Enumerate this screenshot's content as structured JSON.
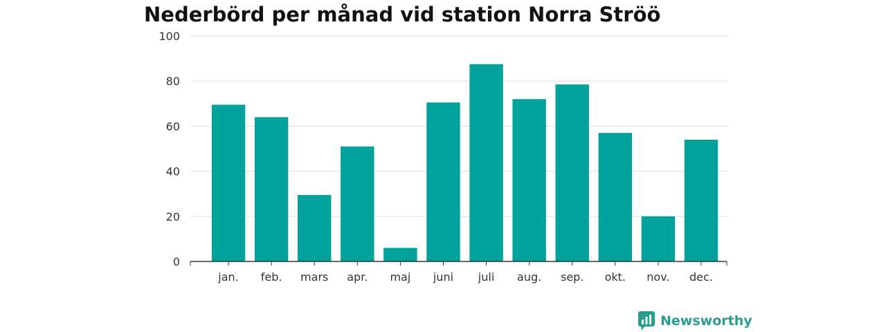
{
  "chart_data": {
    "type": "bar",
    "title": "Nederbörd per månad vid station Norra Ströö",
    "categories": [
      "jan.",
      "feb.",
      "mars",
      "apr.",
      "maj",
      "juni",
      "juli",
      "aug.",
      "sep.",
      "okt.",
      "nov.",
      "dec."
    ],
    "values": [
      69.5,
      64,
      29.5,
      51,
      6,
      70.5,
      87.5,
      72,
      78.5,
      57,
      20,
      54
    ],
    "xlabel": "",
    "ylabel": "",
    "ylim": [
      0,
      100
    ],
    "yticks": [
      0,
      20,
      40,
      60,
      80,
      100
    ],
    "grid": true,
    "bar_color": "#00a39b"
  },
  "brand": {
    "name": "Newsworthy",
    "icon": "newsworthy-logo-icon",
    "color": "#2a9d8f"
  }
}
